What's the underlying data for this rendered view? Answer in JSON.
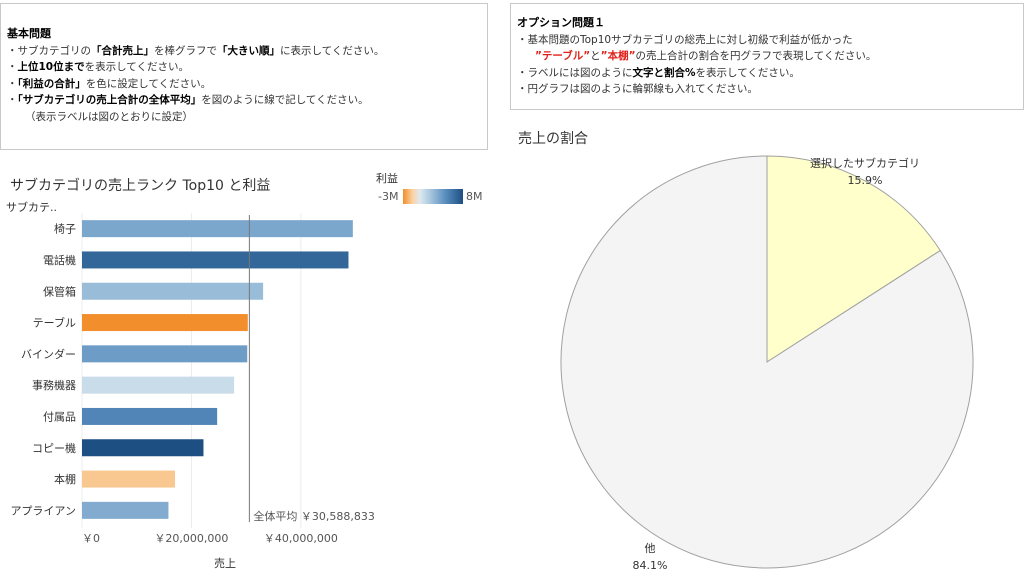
{
  "basic_box": {
    "heading": "基本問題",
    "line1": {
      "a": "・サブカテゴリの",
      "b": "「合計売上」",
      "c": "を棒グラフで",
      "d": "「大きい順」",
      "e": "に表示してください。"
    },
    "line2": {
      "a": "・",
      "b": "上位10位まで",
      "c": "を表示してください。"
    },
    "line3": {
      "a": "・",
      "b": "「利益の合計」",
      "c": "を色に設定してください。"
    },
    "line4": {
      "a": "・",
      "b": "「サブカテゴリの売上合計の全体平均」",
      "c": "を図のように線で記してください。"
    },
    "line5": "（表示ラベルは図のとおりに設定）"
  },
  "option_box": {
    "heading": "オプション問題１",
    "line1": "・基本問題のTop10サブカテゴリの総売上に対し初級で利益が低かった",
    "line2": {
      "a": "”テーブル”",
      "b": "と",
      "c": "”本棚”",
      "d": "の売上合計の割合を円グラフで表現してください。"
    },
    "line3": {
      "a": "・ラベルには図のように",
      "b": "文字と割合%",
      "c": "を表示してください。"
    },
    "line4": "・円グラフは図のように輪郭線も入れてください。"
  },
  "bar_chart_title": "サブカテゴリの売上ランク Top10 と利益",
  "legend": {
    "title": "利益",
    "min_label": "-3M",
    "max_label": "8M"
  },
  "chart_data": [
    {
      "type": "bar",
      "orientation": "horizontal",
      "title": "サブカテゴリの売上ランク Top10 と利益",
      "ylabel": "サブカテ..",
      "xlabel": "売上",
      "categories": [
        "椅子",
        "電話機",
        "保管箱",
        "テーブル",
        "バインダー",
        "事務機器",
        "付属品",
        "コピー機",
        "本棚",
        "アプライアン"
      ],
      "values": [
        49500000,
        48700000,
        33100000,
        30300000,
        30200000,
        27800000,
        24700000,
        22200000,
        17000000,
        15800000
      ],
      "profit_values": [
        3300000,
        6400000,
        2300000,
        -3000000,
        3800000,
        800000,
        4900000,
        7600000,
        -1500000,
        3100000
      ],
      "xticks": [
        "￥0",
        "￥20,000,000",
        "￥40,000,000"
      ],
      "xtick_values": [
        0,
        20000000,
        40000000
      ],
      "xlim": [
        0,
        53000000
      ],
      "reference_line": {
        "label": "全体平均 ￥30,588,833",
        "value": 30588833
      },
      "colors": {
        "bar_min": "#f28e2b",
        "bar_max": "#1d4f82"
      }
    },
    {
      "type": "pie",
      "title": "売上の割合",
      "slices": [
        {
          "label": "選択したサブカテゴリ",
          "pct_label": "15.9%",
          "value": 15.9,
          "color": "#ffffcc"
        },
        {
          "label": "他",
          "pct_label": "84.1%",
          "value": 84.1,
          "color": "#f4f4f4"
        }
      ],
      "outline_color": "#a0a0a0"
    }
  ]
}
